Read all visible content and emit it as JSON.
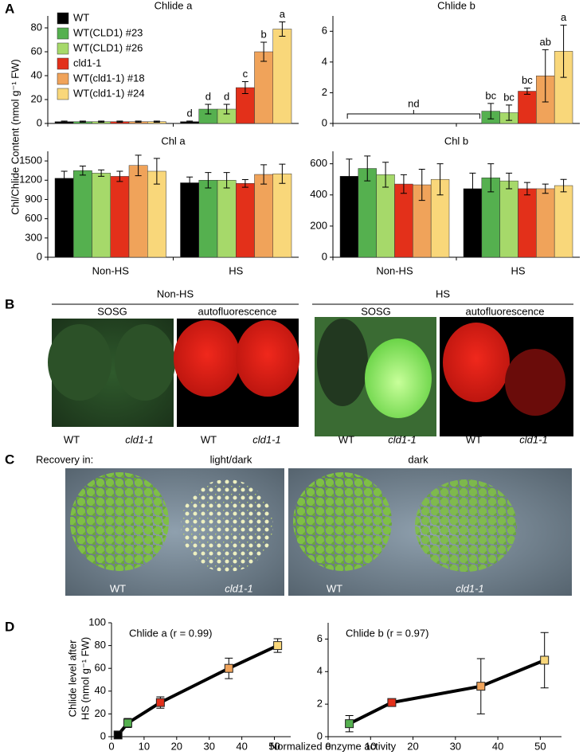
{
  "panel_labels": [
    "A",
    "B",
    "C",
    "D"
  ],
  "panel_a": {
    "ylabel": "Chl/Chlide Content (nmol g⁻¹ FW)"
  },
  "panel_b": {
    "groups": [
      {
        "title": "Non-HS",
        "images": [
          {
            "title": "SOSG",
            "labels": [
              "WT",
              "cld1-1"
            ]
          },
          {
            "title": "autofluorescence",
            "labels": [
              "WT",
              "cld1-1"
            ]
          }
        ]
      },
      {
        "title": "HS",
        "images": [
          {
            "title": "SOSG",
            "labels": [
              "WT",
              "cld1-1"
            ]
          },
          {
            "title": "autofluorescence",
            "labels": [
              "WT",
              "cld1-1"
            ]
          }
        ]
      }
    ]
  },
  "panel_c": {
    "caption": "Recovery in:",
    "images": [
      {
        "title": "light/dark",
        "labels": [
          "WT",
          "cld1-1"
        ]
      },
      {
        "title": "dark",
        "labels": [
          "WT",
          "cld1-1"
        ]
      }
    ]
  },
  "panel_d": {
    "ylabel": [
      "Chlide level after",
      "HS (nmol g⁻¹ FW)"
    ],
    "xlabel": "Normalized enzyme activity"
  },
  "chart_data": [
    {
      "type": "bar",
      "title": "Chlide a",
      "ylim": [
        0,
        90
      ],
      "yticks": [
        0,
        20,
        40,
        60,
        80
      ],
      "legend": "upper left",
      "series": [
        {
          "name": "WT",
          "color": "#000000",
          "values": [
            1.5,
            1.5
          ],
          "errors": [
            0.5,
            0.5
          ],
          "letters": [
            null,
            "d"
          ]
        },
        {
          "name": "WT(CLD1) #23",
          "color": "#55b04f",
          "values": [
            1.5,
            12
          ],
          "errors": [
            0.5,
            4
          ],
          "letters": [
            null,
            "d"
          ]
        },
        {
          "name": "WT(CLD1) #26",
          "color": "#a6d96a",
          "values": [
            1.5,
            12
          ],
          "errors": [
            0.5,
            4
          ],
          "letters": [
            null,
            "d"
          ]
        },
        {
          "name": "cld1-1",
          "color": "#e3301a",
          "values": [
            1.5,
            30
          ],
          "errors": [
            0.5,
            5
          ],
          "letters": [
            null,
            "c"
          ]
        },
        {
          "name": "WT(cld1-1) #18",
          "color": "#f0a35a",
          "values": [
            1.5,
            60
          ],
          "errors": [
            0.5,
            8
          ],
          "letters": [
            null,
            "b"
          ]
        },
        {
          "name": "WT(cld1-1) #24",
          "color": "#f9d77a",
          "values": [
            1.5,
            79
          ],
          "errors": [
            0.5,
            6
          ],
          "letters": [
            null,
            "a"
          ]
        }
      ]
    },
    {
      "type": "bar",
      "title": "Chlide b",
      "ylim": [
        0,
        7
      ],
      "yticks": [
        0,
        2,
        4,
        6
      ],
      "annotation": "nd",
      "series": [
        {
          "color": "#000000",
          "values": [
            null,
            null
          ],
          "errors": [
            null,
            null
          ]
        },
        {
          "color": "#55b04f",
          "values": [
            null,
            0.8
          ],
          "errors": [
            null,
            0.5
          ],
          "letters": [
            null,
            "bc"
          ]
        },
        {
          "color": "#a6d96a",
          "values": [
            null,
            0.7
          ],
          "errors": [
            null,
            0.5
          ],
          "letters": [
            null,
            "bc"
          ]
        },
        {
          "color": "#e3301a",
          "values": [
            null,
            2.1
          ],
          "errors": [
            null,
            0.2
          ],
          "letters": [
            null,
            "bc"
          ]
        },
        {
          "color": "#f0a35a",
          "values": [
            null,
            3.1
          ],
          "errors": [
            null,
            1.7
          ],
          "letters": [
            null,
            "ab"
          ]
        },
        {
          "color": "#f9d77a",
          "values": [
            null,
            4.7
          ],
          "errors": [
            null,
            1.7
          ],
          "letters": [
            null,
            "a"
          ]
        }
      ]
    },
    {
      "type": "bar",
      "title": "Chl a",
      "categories": [
        "Non-HS",
        "HS"
      ],
      "ylim": [
        0,
        1650
      ],
      "yticks": [
        0,
        300,
        600,
        900,
        1200,
        1500
      ],
      "series": [
        {
          "color": "#000000",
          "values": [
            1230,
            1160
          ],
          "errors": [
            110,
            90
          ]
        },
        {
          "color": "#55b04f",
          "values": [
            1350,
            1200
          ],
          "errors": [
            70,
            120
          ]
        },
        {
          "color": "#a6d96a",
          "values": [
            1310,
            1200
          ],
          "errors": [
            50,
            120
          ]
        },
        {
          "color": "#e3301a",
          "values": [
            1260,
            1150
          ],
          "errors": [
            80,
            60
          ]
        },
        {
          "color": "#f0a35a",
          "values": [
            1430,
            1290
          ],
          "errors": [
            160,
            150
          ]
        },
        {
          "color": "#f9d77a",
          "values": [
            1340,
            1300
          ],
          "errors": [
            200,
            150
          ]
        }
      ]
    },
    {
      "type": "bar",
      "title": "Chl b",
      "categories": [
        "Non-HS",
        "HS"
      ],
      "ylim": [
        0,
        680
      ],
      "yticks": [
        0,
        200,
        400,
        600
      ],
      "series": [
        {
          "color": "#000000",
          "values": [
            520,
            440
          ],
          "errors": [
            110,
            100
          ]
        },
        {
          "color": "#55b04f",
          "values": [
            570,
            510
          ],
          "errors": [
            80,
            90
          ]
        },
        {
          "color": "#a6d96a",
          "values": [
            530,
            490
          ],
          "errors": [
            80,
            50
          ]
        },
        {
          "color": "#e3301a",
          "values": [
            470,
            440
          ],
          "errors": [
            60,
            40
          ]
        },
        {
          "color": "#f0a35a",
          "values": [
            465,
            440
          ],
          "errors": [
            100,
            30
          ]
        },
        {
          "color": "#f9d77a",
          "values": [
            500,
            460
          ],
          "errors": [
            100,
            40
          ]
        }
      ]
    },
    {
      "type": "line",
      "title": "Chlide a (r = 0.99)",
      "color": "#000000",
      "x": [
        2,
        5,
        15,
        36,
        51
      ],
      "values": [
        1.5,
        12,
        30,
        60,
        80
      ],
      "errors": [
        1,
        4,
        5,
        9,
        6
      ],
      "point_colors": [
        "#000000",
        "#55b04f",
        "#e3301a",
        "#f0a35a",
        "#f9d77a"
      ],
      "xlim": [
        0,
        55
      ],
      "xticks": [
        0,
        10,
        20,
        30,
        40,
        50
      ],
      "ylim": [
        0,
        100
      ],
      "yticks": [
        0,
        20,
        40,
        60,
        80,
        100
      ]
    },
    {
      "type": "line",
      "title": "Chlide b (r = 0.97)",
      "color": "#000000",
      "x": [
        5,
        15,
        36,
        51
      ],
      "values": [
        0.8,
        2.1,
        3.1,
        4.7
      ],
      "errors": [
        0.5,
        0.2,
        1.7,
        1.7
      ],
      "point_colors": [
        "#55b04f",
        "#e3301a",
        "#f0a35a",
        "#f9d77a"
      ],
      "xlim": [
        0,
        55
      ],
      "xticks": [
        0,
        10,
        20,
        30,
        40,
        50
      ],
      "ylim": [
        0,
        7
      ],
      "yticks": [
        0,
        2,
        4,
        6
      ]
    }
  ]
}
